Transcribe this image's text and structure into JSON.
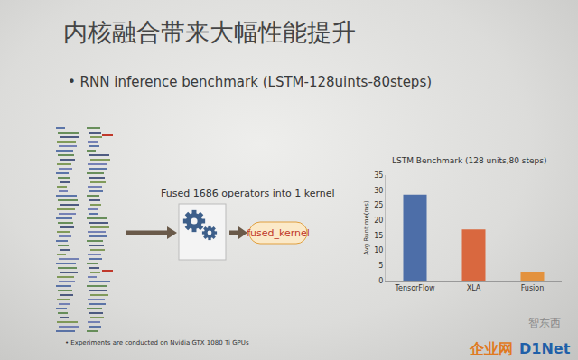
{
  "slide": {
    "title": "内核融合带来大幅性能提升",
    "bullet": "• RNN inference benchmark (LSTM-128uints-80steps)",
    "diagram": {
      "caption": "Fused 1686 operators into 1 kernel",
      "output": "fused_kernel"
    },
    "footnote": "• Experiments are conducted on Nvidia GTX 1080 Ti GPUs",
    "watermarks": [
      "智东西",
      "企业网",
      "D1Net"
    ]
  },
  "chart_data": {
    "type": "bar",
    "title": "LSTM Benchmark (128 units,80 steps)",
    "y_label": "Avg Runtime(ms)",
    "categories": [
      "TensorFlow",
      "XLA",
      "Fusion"
    ],
    "values": [
      28.5,
      17,
      3
    ],
    "colors": [
      "#4d6ea8",
      "#d9683f",
      "#e3923e"
    ],
    "ylim": [
      0,
      35
    ],
    "yticks": [
      0,
      5,
      10,
      15,
      20,
      25,
      30,
      35
    ],
    "grid": false
  }
}
